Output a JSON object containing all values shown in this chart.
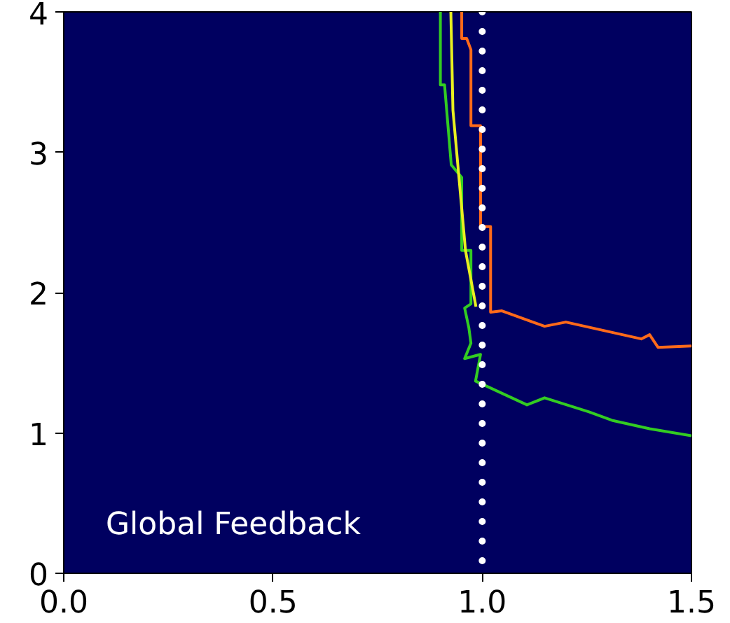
{
  "chart_data": {
    "type": "line",
    "xlim": [
      0,
      1.5
    ],
    "ylim": [
      0,
      4
    ],
    "xticks": [
      {
        "value": 0,
        "label": "0.0"
      },
      {
        "value": 0.5,
        "label": "0.5"
      },
      {
        "value": 1,
        "label": "1.0"
      },
      {
        "value": 1.5,
        "label": "1.5"
      }
    ],
    "yticks": [
      0,
      1,
      2,
      3,
      4
    ],
    "grid": false,
    "marker": "none",
    "line_style": "solid",
    "series": [
      {
        "color": "#ff6a1a",
        "x": [
          0.951,
          0.951,
          0.963,
          0.973,
          0.973,
          0.996,
          0.996,
          1.02,
          1.02,
          1.047,
          1.149,
          1.2,
          1.38,
          1.4,
          1.42,
          1.5
        ],
        "values": [
          4,
          3.81,
          3.81,
          3.73,
          3.19,
          3.19,
          2.47,
          2.47,
          1.86,
          1.87,
          1.76,
          1.79,
          1.67,
          1.7,
          1.61,
          1.62
        ]
      },
      {
        "color": "#33cc22",
        "x": [
          0.9,
          0.9,
          0.91,
          0.926,
          0.951,
          0.951,
          0.973,
          0.973,
          0.958,
          0.968,
          0.973,
          0.958,
          0.996,
          0.984,
          1.107,
          1.149,
          1.255,
          1.31,
          1.4,
          1.5
        ],
        "values": [
          4,
          3.48,
          3.48,
          2.91,
          2.82,
          2.3,
          2.3,
          1.92,
          1.89,
          1.75,
          1.64,
          1.53,
          1.56,
          1.37,
          1.2,
          1.25,
          1.15,
          1.09,
          1.03,
          0.98
        ]
      },
      {
        "color": "#e8f020",
        "x": [
          0.925,
          0.93,
          0.945,
          0.96,
          0.985
        ],
        "values": [
          4,
          3.3,
          2.8,
          2.3,
          1.9
        ]
      }
    ],
    "ref_lines": [
      {
        "axis": "x",
        "value": 1.0,
        "color": "#ffffff",
        "line_style": "dotted"
      }
    ],
    "annotations": [
      "Global Feedback"
    ]
  }
}
